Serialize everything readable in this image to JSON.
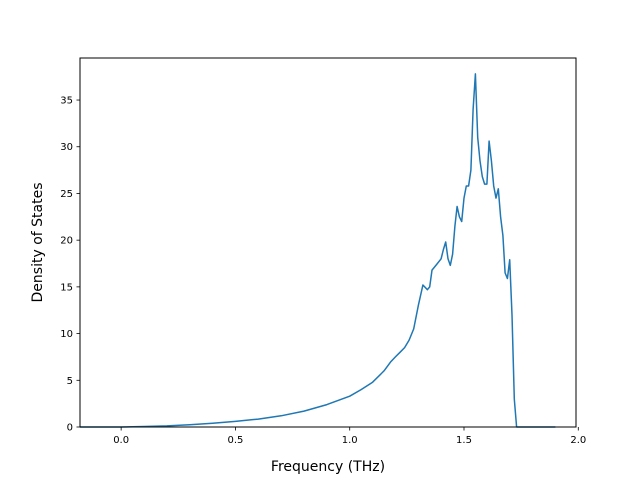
{
  "chart_data": {
    "type": "line",
    "xlabel": "Frequency (THz)",
    "ylabel": "Density of States",
    "xlim": [
      -0.18,
      1.99
    ],
    "ylim": [
      0,
      39.5
    ],
    "xticks": [
      0.0,
      0.5,
      1.0,
      1.5,
      2.0
    ],
    "xtick_labels": [
      "0.0",
      "0.5",
      "1.0",
      "1.5",
      "2.0"
    ],
    "yticks": [
      0,
      5,
      10,
      15,
      20,
      25,
      30,
      35
    ],
    "ytick_labels": [
      "0",
      "5",
      "10",
      "15",
      "20",
      "25",
      "30",
      "35"
    ],
    "grid": false,
    "line_color": "#1f77b4",
    "series": [
      {
        "x": [
          -0.18,
          0.0,
          0.1,
          0.2,
          0.3,
          0.4,
          0.5,
          0.6,
          0.7,
          0.8,
          0.9,
          1.0,
          1.05,
          1.1,
          1.15,
          1.18,
          1.2,
          1.22,
          1.24,
          1.26,
          1.28,
          1.3,
          1.32,
          1.34,
          1.35,
          1.36,
          1.38,
          1.4,
          1.41,
          1.42,
          1.43,
          1.44,
          1.45,
          1.46,
          1.47,
          1.48,
          1.49,
          1.5,
          1.51,
          1.52,
          1.53,
          1.54,
          1.55,
          1.56,
          1.57,
          1.58,
          1.59,
          1.6,
          1.61,
          1.62,
          1.63,
          1.64,
          1.65,
          1.66,
          1.67,
          1.68,
          1.69,
          1.7,
          1.71,
          1.72,
          1.73,
          1.74,
          1.75,
          1.8,
          1.9
        ],
        "y": [
          0.0,
          0.0,
          0.05,
          0.12,
          0.25,
          0.4,
          0.6,
          0.85,
          1.2,
          1.7,
          2.4,
          3.3,
          4.0,
          4.8,
          6.0,
          7.0,
          7.5,
          8.0,
          8.5,
          9.3,
          10.5,
          13.0,
          15.2,
          14.7,
          15.0,
          16.8,
          17.4,
          18.0,
          19.0,
          19.8,
          18.0,
          17.3,
          18.5,
          21.5,
          23.6,
          22.5,
          22.0,
          24.5,
          25.8,
          25.8,
          27.5,
          34.0,
          37.8,
          31.0,
          28.5,
          26.8,
          26.0,
          26.0,
          30.6,
          28.5,
          25.8,
          24.5,
          25.5,
          22.5,
          20.5,
          16.5,
          15.9,
          17.9,
          12.0,
          3.0,
          0.0,
          0.0,
          0.0,
          0.0,
          0.0
        ]
      }
    ]
  }
}
